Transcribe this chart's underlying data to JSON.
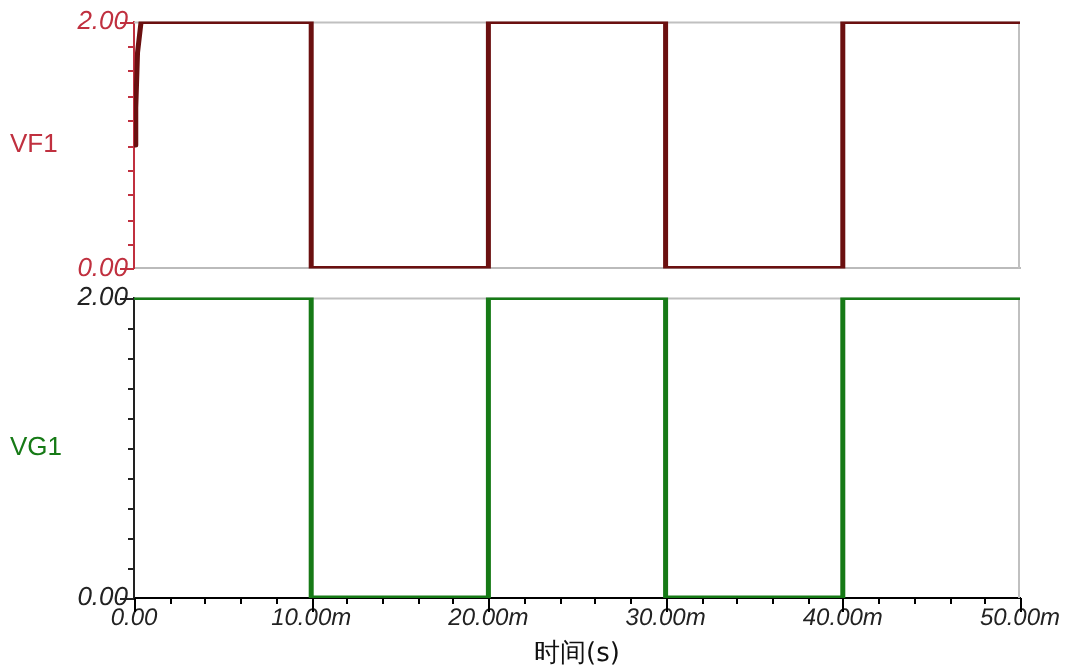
{
  "chart_data": [
    {
      "type": "line",
      "ylabel": "VF1",
      "xlim": [
        0,
        50
      ],
      "ylim": [
        0,
        2
      ],
      "yticks": [
        {
          "value": 0,
          "label": "0.00"
        },
        {
          "value": 0.2,
          "label": null
        },
        {
          "value": 0.4,
          "label": null
        },
        {
          "value": 0.6,
          "label": null
        },
        {
          "value": 0.8,
          "label": null
        },
        {
          "value": 1,
          "label": null
        },
        {
          "value": 1.2,
          "label": null
        },
        {
          "value": 1.4,
          "label": null
        },
        {
          "value": 1.6,
          "label": null
        },
        {
          "value": 1.8,
          "label": null
        },
        {
          "value": 2,
          "label": "2.00"
        }
      ],
      "tick_labels": "y",
      "marker": "none",
      "line_style": "solid",
      "series": [
        {
          "color": "#6b1010",
          "x": [
            0,
            0.1,
            0.2,
            0.4,
            10,
            10,
            20,
            20,
            30,
            30,
            40,
            40,
            50
          ],
          "values": [
            1,
            1.3,
            1.75,
            2,
            2,
            0,
            0,
            2,
            2,
            0,
            0,
            2,
            2
          ]
        }
      ]
    },
    {
      "type": "line",
      "ylabel": "VG1",
      "xlabel": "时间(s)",
      "xlim": [
        0,
        50
      ],
      "ylim": [
        0,
        2
      ],
      "xticks": [
        {
          "value": 0,
          "label": "0.00"
        },
        {
          "value": 2,
          "label": null
        },
        {
          "value": 4,
          "label": null
        },
        {
          "value": 6,
          "label": null
        },
        {
          "value": 8,
          "label": null
        },
        {
          "value": 10,
          "label": "10.00m"
        },
        {
          "value": 12,
          "label": null
        },
        {
          "value": 14,
          "label": null
        },
        {
          "value": 16,
          "label": null
        },
        {
          "value": 18,
          "label": null
        },
        {
          "value": 20,
          "label": "20.00m"
        },
        {
          "value": 22,
          "label": null
        },
        {
          "value": 24,
          "label": null
        },
        {
          "value": 26,
          "label": null
        },
        {
          "value": 28,
          "label": null
        },
        {
          "value": 30,
          "label": "30.00m"
        },
        {
          "value": 32,
          "label": null
        },
        {
          "value": 34,
          "label": null
        },
        {
          "value": 36,
          "label": null
        },
        {
          "value": 38,
          "label": null
        },
        {
          "value": 40,
          "label": "40.00m"
        },
        {
          "value": 42,
          "label": null
        },
        {
          "value": 44,
          "label": null
        },
        {
          "value": 46,
          "label": null
        },
        {
          "value": 48,
          "label": null
        },
        {
          "value": 50,
          "label": "50.00m"
        }
      ],
      "yticks": [
        {
          "value": 0,
          "label": "0.00"
        },
        {
          "value": 0.2,
          "label": null
        },
        {
          "value": 0.4,
          "label": null
        },
        {
          "value": 0.6,
          "label": null
        },
        {
          "value": 0.8,
          "label": null
        },
        {
          "value": 1,
          "label": null
        },
        {
          "value": 1.2,
          "label": null
        },
        {
          "value": 1.4,
          "label": null
        },
        {
          "value": 1.6,
          "label": null
        },
        {
          "value": 1.8,
          "label": null
        },
        {
          "value": 2,
          "label": "2.00"
        }
      ],
      "marker": "none",
      "line_style": "solid",
      "series": [
        {
          "color": "#167a16",
          "x": [
            0,
            10,
            10,
            20,
            20,
            30,
            30,
            40,
            40,
            50
          ],
          "values": [
            2,
            2,
            0,
            0,
            2,
            2,
            0,
            0,
            2,
            2
          ]
        }
      ]
    }
  ]
}
